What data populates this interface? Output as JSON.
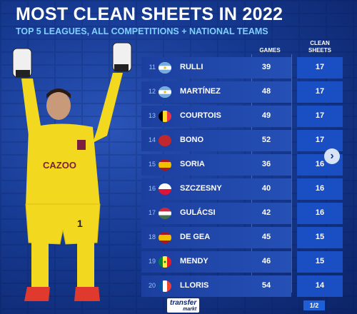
{
  "header": {
    "title": "MOST CLEAN SHEETS IN 2022",
    "subtitle": "TOP 5 LEAGUES, ALL COMPETITIONS + NATIONAL TEAMS"
  },
  "columns": {
    "games": "GAMES",
    "clean_sheets_line1": "CLEAN",
    "clean_sheets_line2": "SHEETS"
  },
  "player_shirt_text": "CAZOO",
  "rows": [
    {
      "rank": "11",
      "name": "RULLI",
      "games": "39",
      "clean_sheets": "17",
      "flag": "argentina"
    },
    {
      "rank": "12",
      "name": "MARTÍNEZ",
      "games": "48",
      "clean_sheets": "17",
      "flag": "argentina"
    },
    {
      "rank": "13",
      "name": "COURTOIS",
      "games": "49",
      "clean_sheets": "17",
      "flag": "belgium"
    },
    {
      "rank": "14",
      "name": "BONO",
      "games": "52",
      "clean_sheets": "17",
      "flag": "morocco"
    },
    {
      "rank": "15",
      "name": "SORIA",
      "games": "36",
      "clean_sheets": "16",
      "flag": "spain"
    },
    {
      "rank": "16",
      "name": "SZCZESNY",
      "games": "40",
      "clean_sheets": "16",
      "flag": "poland"
    },
    {
      "rank": "17",
      "name": "GULÁCSI",
      "games": "42",
      "clean_sheets": "16",
      "flag": "hungary"
    },
    {
      "rank": "18",
      "name": "DE GEA",
      "games": "45",
      "clean_sheets": "15",
      "flag": "spain"
    },
    {
      "rank": "19",
      "name": "MENDY",
      "games": "46",
      "clean_sheets": "15",
      "flag": "senegal"
    },
    {
      "rank": "20",
      "name": "LLORIS",
      "games": "54",
      "clean_sheets": "14",
      "flag": "france"
    }
  ],
  "next_icon": "chevron-right-icon",
  "logo": {
    "line1": "transfer",
    "line2": "markt"
  },
  "pagination": "1/2",
  "colors": {
    "accent": "#7fd0ff",
    "cell": "#1a4fc4",
    "background": "#163a92",
    "shirt": "#f2d81e"
  }
}
